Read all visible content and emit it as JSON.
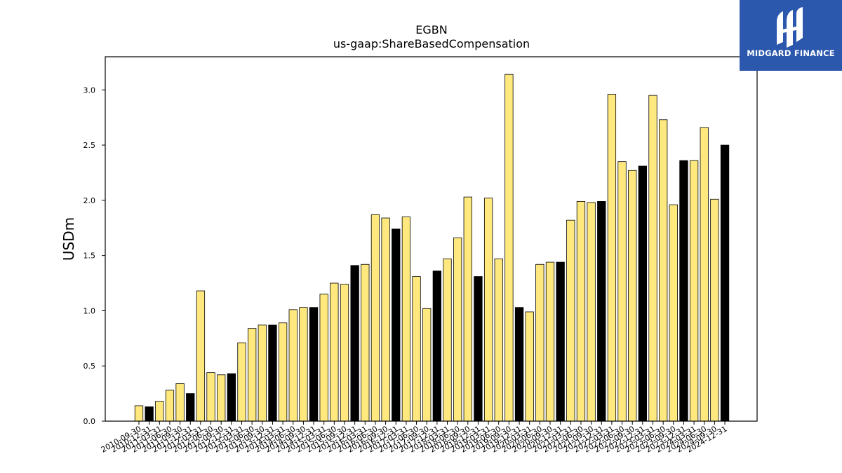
{
  "brand": {
    "name": "MIDGARD FINANCE",
    "bg_color": "#2b57ad"
  },
  "chart_data": {
    "type": "bar",
    "title": "EGBN",
    "subtitle": "us-gaap:ShareBasedCompensation",
    "ylabel": "USDm",
    "xlabel": "",
    "ylim": [
      0,
      3.3
    ],
    "yticks": [
      0.0,
      0.5,
      1.0,
      1.5,
      2.0,
      2.5,
      3.0
    ],
    "grid": false,
    "colors": {
      "quarter": "#ffe97f",
      "year_end": "#000000",
      "edge": "#000000"
    },
    "categories": [
      "2010-09-30",
      "2010-12-31",
      "2011-03-31",
      "2011-06-30",
      "2011-09-30",
      "2011-12-31",
      "2012-03-31",
      "2012-06-30",
      "2012-09-30",
      "2012-12-31",
      "2013-03-31",
      "2013-06-30",
      "2013-09-30",
      "2013-12-31",
      "2014-03-31",
      "2014-06-30",
      "2014-09-30",
      "2014-12-31",
      "2015-03-31",
      "2015-06-30",
      "2015-09-30",
      "2015-12-31",
      "2016-03-31",
      "2016-06-30",
      "2016-09-30",
      "2016-12-31",
      "2017-03-31",
      "2017-06-30",
      "2017-09-30",
      "2017-12-31",
      "2018-03-31",
      "2018-06-30",
      "2018-09-30",
      "2018-12-31",
      "2019-03-31",
      "2019-06-30",
      "2019-09-30",
      "2019-12-31",
      "2020-03-31",
      "2020-06-30",
      "2020-09-30",
      "2020-12-31",
      "2021-03-31",
      "2021-06-30",
      "2021-09-30",
      "2021-12-31",
      "2022-03-31",
      "2022-06-30",
      "2022-09-30",
      "2022-12-31",
      "2023-03-31",
      "2023-06-30",
      "2023-09-30",
      "2023-12-31",
      "2024-03-31",
      "2024-06-30",
      "2024-09-30",
      "2024-12-31"
    ],
    "values": [
      0.14,
      0.13,
      0.18,
      0.28,
      0.34,
      0.25,
      1.18,
      0.44,
      0.42,
      0.43,
      0.71,
      0.84,
      0.87,
      0.87,
      0.89,
      1.01,
      1.03,
      1.03,
      1.15,
      1.25,
      1.24,
      1.41,
      1.42,
      1.87,
      1.84,
      1.74,
      1.85,
      1.31,
      1.02,
      1.36,
      1.47,
      1.66,
      2.03,
      1.31,
      2.02,
      1.47,
      3.14,
      1.03,
      0.99,
      1.42,
      1.44,
      1.44,
      1.82,
      1.99,
      1.98,
      1.99,
      2.96,
      2.35,
      2.27,
      2.31,
      2.95,
      2.73,
      1.96,
      2.36,
      2.36,
      2.66,
      2.01,
      2.5
    ]
  }
}
